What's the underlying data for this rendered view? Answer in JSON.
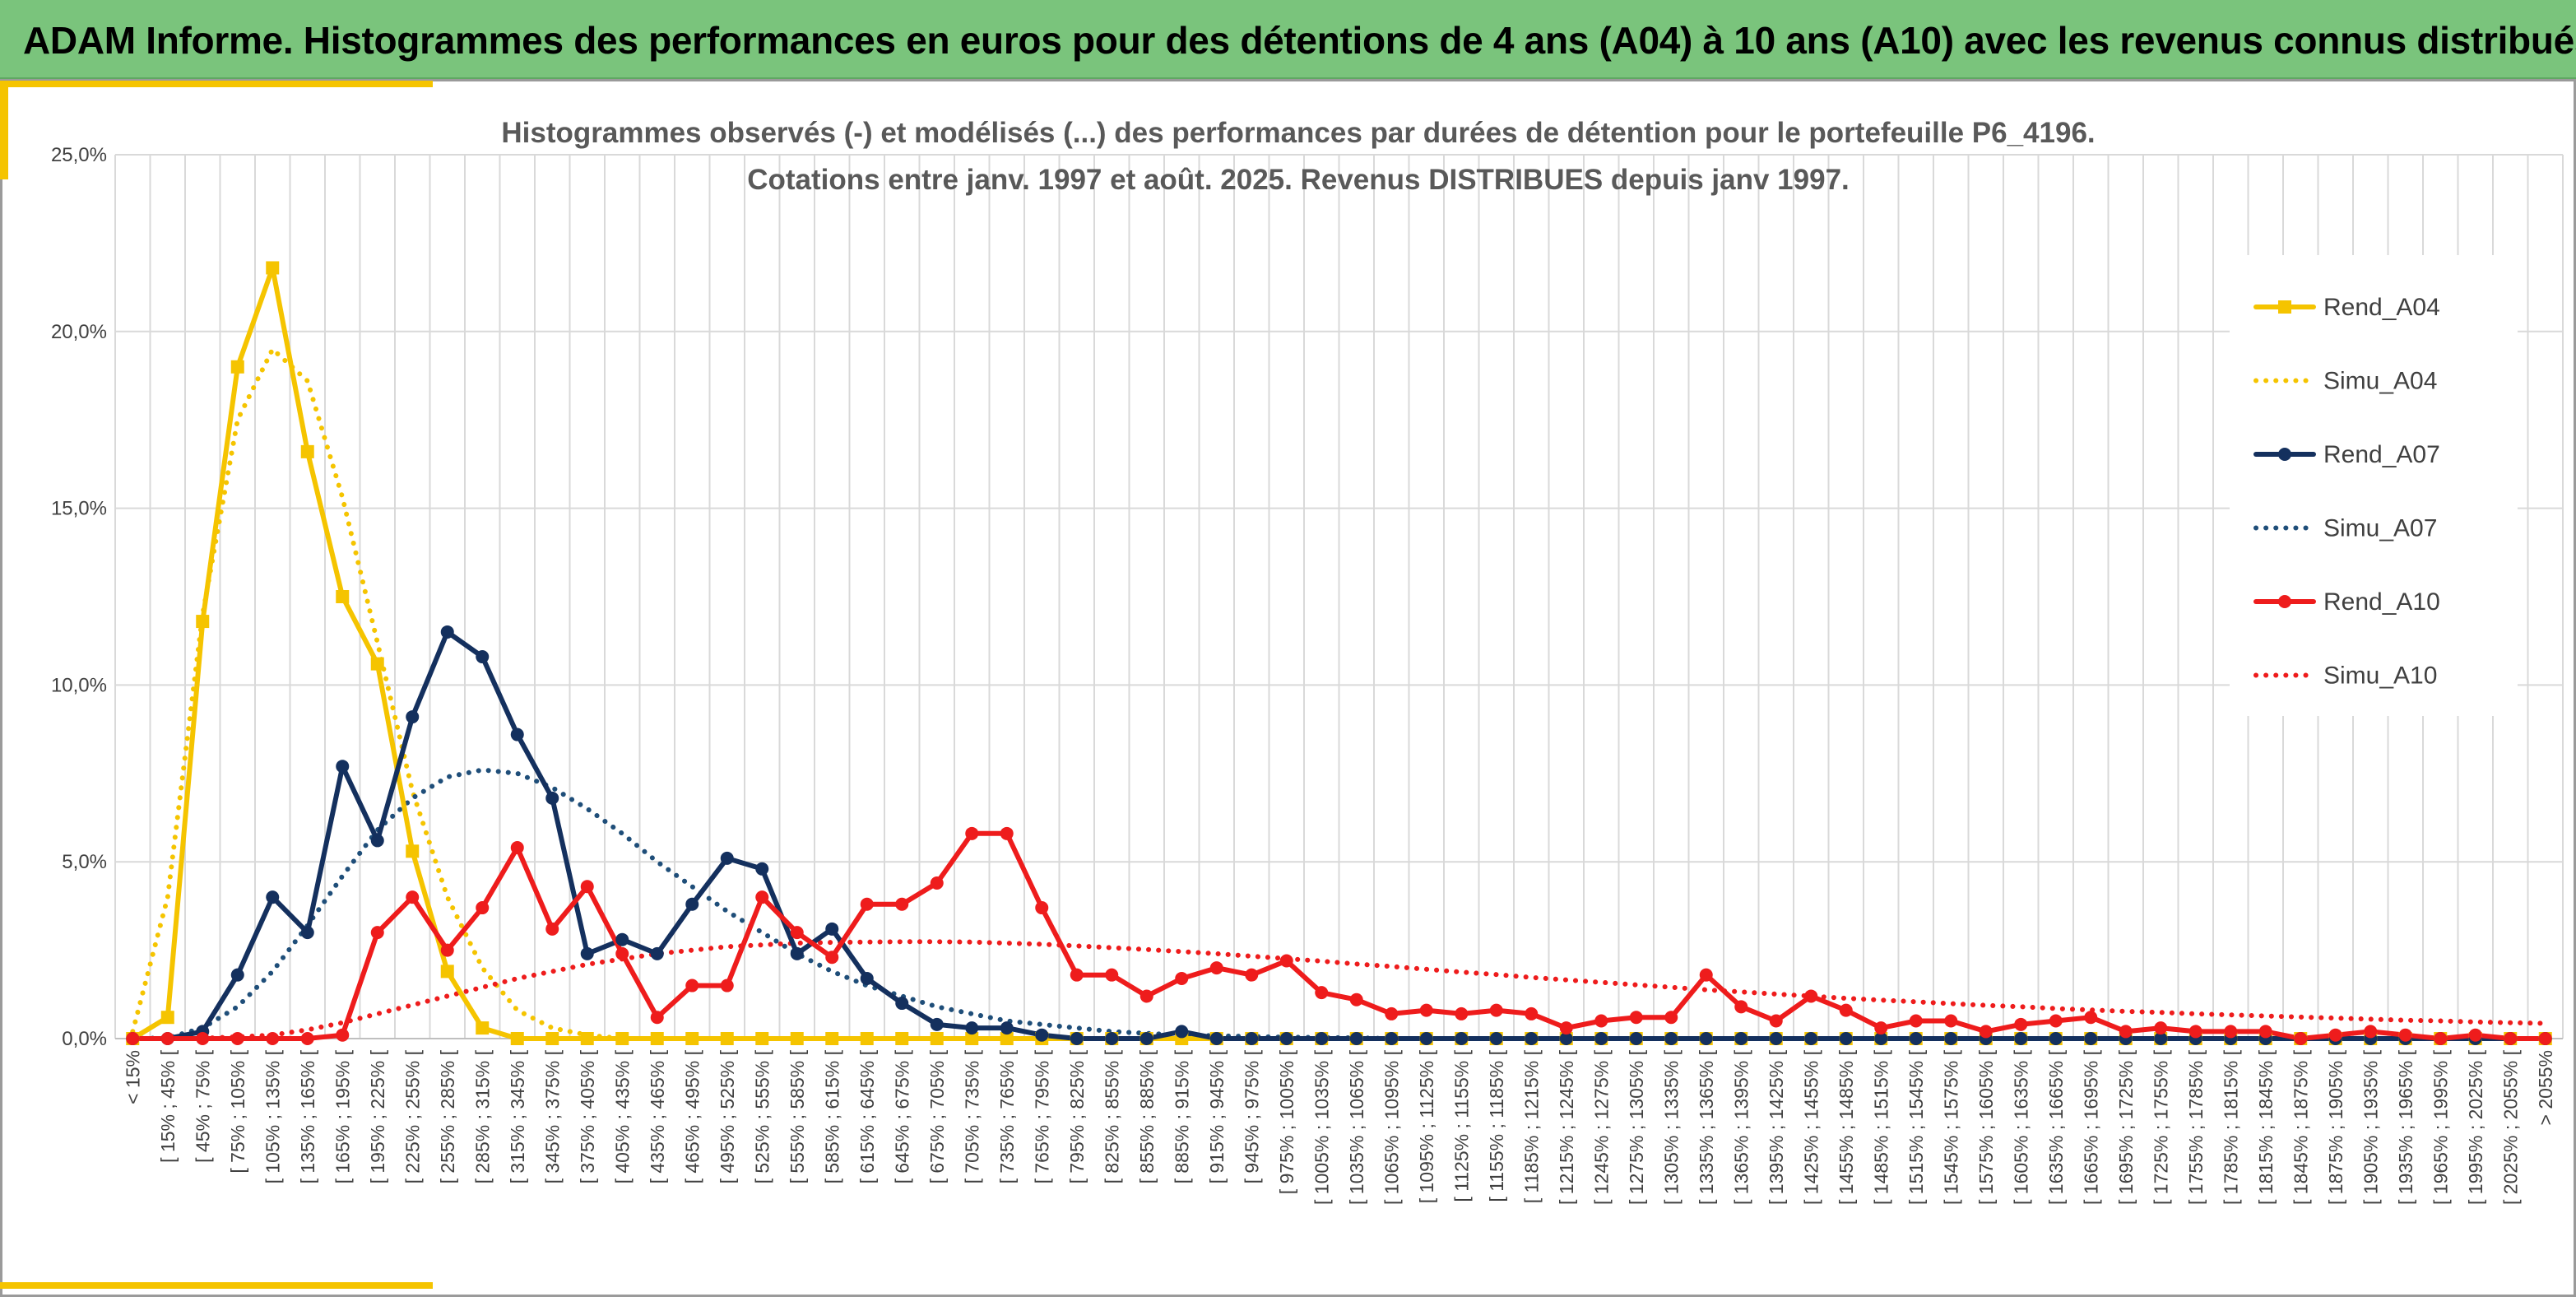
{
  "header": {
    "title": "ADAM Informe. Histogrammes des performances en euros pour des détentions de 4 ans (A04) à 10 ans (A10) avec les revenus connus distribués"
  },
  "chart_data": {
    "type": "line",
    "title": "Histogrammes observés (-) et modélisés (...) des performances par durées de détention pour le portefeuille P6_4196.",
    "subtitle": "Cotations entre janv. 1997 et août. 2025. Revenus DISTRIBUES depuis janv 1997.",
    "xlabel": "",
    "ylabel": "",
    "ylim": [
      0,
      25
    ],
    "grid": true,
    "legend_position": "right",
    "y_ticks": [
      "0,0%",
      "5,0%",
      "10,0%",
      "15,0%",
      "20,0%",
      "25,0%"
    ],
    "y_tick_values": [
      0,
      5,
      10,
      15,
      20,
      25
    ],
    "categories": [
      "< 15%",
      "[ 15% ; 45% [",
      "[ 45% ; 75% [",
      "[ 75% ; 105% [",
      "[ 105% ; 135% [",
      "[ 135% ; 165% [",
      "[ 165% ; 195% [",
      "[ 195% ; 225% [",
      "[ 225% ; 255% [",
      "[ 255% ; 285% [",
      "[ 285% ; 315% [",
      "[ 315% ; 345% [",
      "[ 345% ; 375% [",
      "[ 375% ; 405% [",
      "[ 405% ; 435% [",
      "[ 435% ; 465% [",
      "[ 465% ; 495% [",
      "[ 495% ; 525% [",
      "[ 525% ; 555% [",
      "[ 555% ; 585% [",
      "[ 585% ; 615% [",
      "[ 615% ; 645% [",
      "[ 645% ; 675% [",
      "[ 675% ; 705% [",
      "[ 705% ; 735% [",
      "[ 735% ; 765% [",
      "[ 765% ; 795% [",
      "[ 795% ; 825% [",
      "[ 825% ; 855% [",
      "[ 855% ; 885% [",
      "[ 885% ; 915% [",
      "[ 915% ; 945% [",
      "[ 945% ; 975% [",
      "[ 975% ; 1005% [",
      "[ 1005% ; 1035% [",
      "[ 1035% ; 1065% [",
      "[ 1065% ; 1095% [",
      "[ 1095% ; 1125% [",
      "[ 1125% ; 1155% [",
      "[ 1155% ; 1185% [",
      "[ 1185% ; 1215% [",
      "[ 1215% ; 1245% [",
      "[ 1245% ; 1275% [",
      "[ 1275% ; 1305% [",
      "[ 1305% ; 1335% [",
      "[ 1335% ; 1365% [",
      "[ 1365% ; 1395% [",
      "[ 1395% ; 1425% [",
      "[ 1425% ; 1455% [",
      "[ 1455% ; 1485% [",
      "[ 1485% ; 1515% [",
      "[ 1515% ; 1545% [",
      "[ 1545% ; 1575% [",
      "[ 1575% ; 1605% [",
      "[ 1605% ; 1635% [",
      "[ 1635% ; 1665% [",
      "[ 1665% ; 1695% [",
      "[ 1695% ; 1725% [",
      "[ 1725% ; 1755% [",
      "[ 1755% ; 1785% [",
      "[ 1785% ; 1815% [",
      "[ 1815% ; 1845% [",
      "[ 1845% ; 1875% [",
      "[ 1875% ; 1905% [",
      "[ 1905% ; 1935% [",
      "[ 1935% ; 1965% [",
      "[ 1965% ; 1995% [",
      "[ 1995% ; 2025% [",
      "[ 2025% ; 2055% [",
      "> 2055%"
    ],
    "series": [
      {
        "name": "Rend_A04",
        "color": "#f5c400",
        "style": "solid",
        "marker": "square",
        "values": [
          0,
          0.6,
          11.8,
          19.0,
          21.8,
          16.6,
          12.5,
          10.6,
          5.3,
          1.9,
          0.3,
          0.0,
          0,
          0,
          0,
          0,
          0,
          0,
          0,
          0,
          0,
          0,
          0,
          0,
          0,
          0,
          0,
          0,
          0,
          0,
          0,
          0,
          0,
          0,
          0,
          0,
          0,
          0,
          0,
          0,
          0,
          0,
          0,
          0,
          0,
          0,
          0,
          0,
          0,
          0,
          0,
          0,
          0,
          0,
          0,
          0,
          0,
          0,
          0,
          0,
          0,
          0,
          0,
          0,
          0,
          0,
          0,
          0,
          0,
          0
        ]
      },
      {
        "name": "Simu_A04",
        "color": "#f5c400",
        "style": "dotted",
        "marker": "none",
        "values": [
          0.2,
          4.0,
          12.0,
          17.5,
          19.5,
          18.6,
          15.3,
          11.2,
          7.0,
          4.0,
          2.0,
          0.8,
          0.3,
          0.1,
          0,
          0,
          0,
          0,
          0,
          0,
          0,
          0,
          0,
          0,
          0,
          0,
          0,
          0,
          0,
          0,
          0,
          0,
          0,
          0,
          0,
          0,
          0,
          0,
          0,
          0,
          0,
          0,
          0,
          0,
          0,
          0,
          0,
          0,
          0,
          0,
          0,
          0,
          0,
          0,
          0,
          0,
          0,
          0,
          0,
          0,
          0,
          0,
          0,
          0,
          0,
          0,
          0,
          0,
          0,
          0
        ]
      },
      {
        "name": "Rend_A07",
        "color": "#14305e",
        "style": "solid",
        "marker": "circle",
        "values": [
          0,
          0,
          0.2,
          1.8,
          4.0,
          3.0,
          7.7,
          5.6,
          9.1,
          11.5,
          10.8,
          8.6,
          6.8,
          2.4,
          2.8,
          2.4,
          3.8,
          5.1,
          4.8,
          2.4,
          3.1,
          1.7,
          1.0,
          0.4,
          0.3,
          0.3,
          0.1,
          0.0,
          0.0,
          0.0,
          0.2,
          0,
          0,
          0,
          0,
          0,
          0,
          0,
          0,
          0,
          0,
          0,
          0,
          0,
          0,
          0,
          0,
          0,
          0,
          0,
          0,
          0,
          0,
          0,
          0,
          0,
          0,
          0,
          0,
          0,
          0,
          0,
          0,
          0,
          0,
          0,
          0,
          0,
          0,
          0
        ]
      },
      {
        "name": "Simu_A07",
        "color": "#1f4e79",
        "style": "dotted",
        "marker": "none",
        "values": [
          0,
          0.02,
          0.3,
          0.9,
          1.9,
          3.2,
          4.6,
          5.9,
          6.8,
          7.4,
          7.6,
          7.5,
          7.1,
          6.5,
          5.8,
          5.0,
          4.3,
          3.6,
          3.0,
          2.4,
          1.9,
          1.5,
          1.2,
          0.9,
          0.7,
          0.5,
          0.4,
          0.3,
          0.2,
          0.15,
          0.1,
          0.08,
          0.06,
          0.04,
          0.03,
          0.02,
          0,
          0,
          0,
          0,
          0,
          0,
          0,
          0,
          0,
          0,
          0,
          0,
          0,
          0,
          0,
          0,
          0,
          0,
          0,
          0,
          0,
          0,
          0,
          0,
          0,
          0,
          0,
          0,
          0,
          0,
          0,
          0,
          0,
          0
        ]
      },
      {
        "name": "Rend_A10",
        "color": "#ee1c1c",
        "style": "solid",
        "marker": "circle",
        "values": [
          0,
          0,
          0,
          0,
          0,
          0,
          0.1,
          3.0,
          4.0,
          2.5,
          3.7,
          5.4,
          3.1,
          4.3,
          2.4,
          0.6,
          1.5,
          1.5,
          4.0,
          3.0,
          2.3,
          3.8,
          3.8,
          4.4,
          5.8,
          5.8,
          3.7,
          1.8,
          1.8,
          1.2,
          1.7,
          2.0,
          1.8,
          2.2,
          1.3,
          1.1,
          0.7,
          0.8,
          0.7,
          0.8,
          0.7,
          0.3,
          0.5,
          0.6,
          0.6,
          1.8,
          0.9,
          0.5,
          1.2,
          0.8,
          0.3,
          0.5,
          0.5,
          0.2,
          0.4,
          0.5,
          0.6,
          0.2,
          0.3,
          0.2,
          0.2,
          0.2,
          0.0,
          0.1,
          0.2,
          0.1,
          0.0,
          0.1,
          0.0,
          0.0
        ]
      },
      {
        "name": "Simu_A10",
        "color": "#ee1c1c",
        "style": "dotted",
        "marker": "none",
        "values": [
          0,
          0,
          0.01,
          0.05,
          0.1,
          0.25,
          0.45,
          0.7,
          0.95,
          1.2,
          1.45,
          1.7,
          1.9,
          2.1,
          2.25,
          2.4,
          2.5,
          2.6,
          2.65,
          2.7,
          2.72,
          2.73,
          2.74,
          2.74,
          2.73,
          2.7,
          2.67,
          2.62,
          2.57,
          2.52,
          2.46,
          2.4,
          2.33,
          2.26,
          2.19,
          2.11,
          2.04,
          1.96,
          1.88,
          1.81,
          1.73,
          1.66,
          1.59,
          1.52,
          1.45,
          1.38,
          1.32,
          1.26,
          1.2,
          1.14,
          1.09,
          1.04,
          0.99,
          0.94,
          0.9,
          0.85,
          0.81,
          0.77,
          0.74,
          0.7,
          0.67,
          0.64,
          0.61,
          0.58,
          0.55,
          0.52,
          0.5,
          0.47,
          0.45,
          0.43
        ]
      }
    ]
  }
}
